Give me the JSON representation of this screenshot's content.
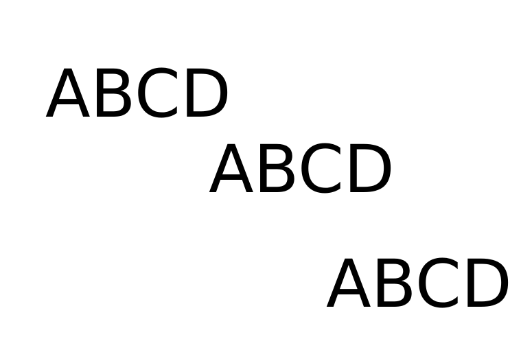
{
  "labels": [
    {
      "text": "ABCD"
    },
    {
      "text": "ABCD"
    },
    {
      "text": "ABCD"
    }
  ],
  "colors": {
    "background": "#ffffff",
    "text": "#000000"
  }
}
